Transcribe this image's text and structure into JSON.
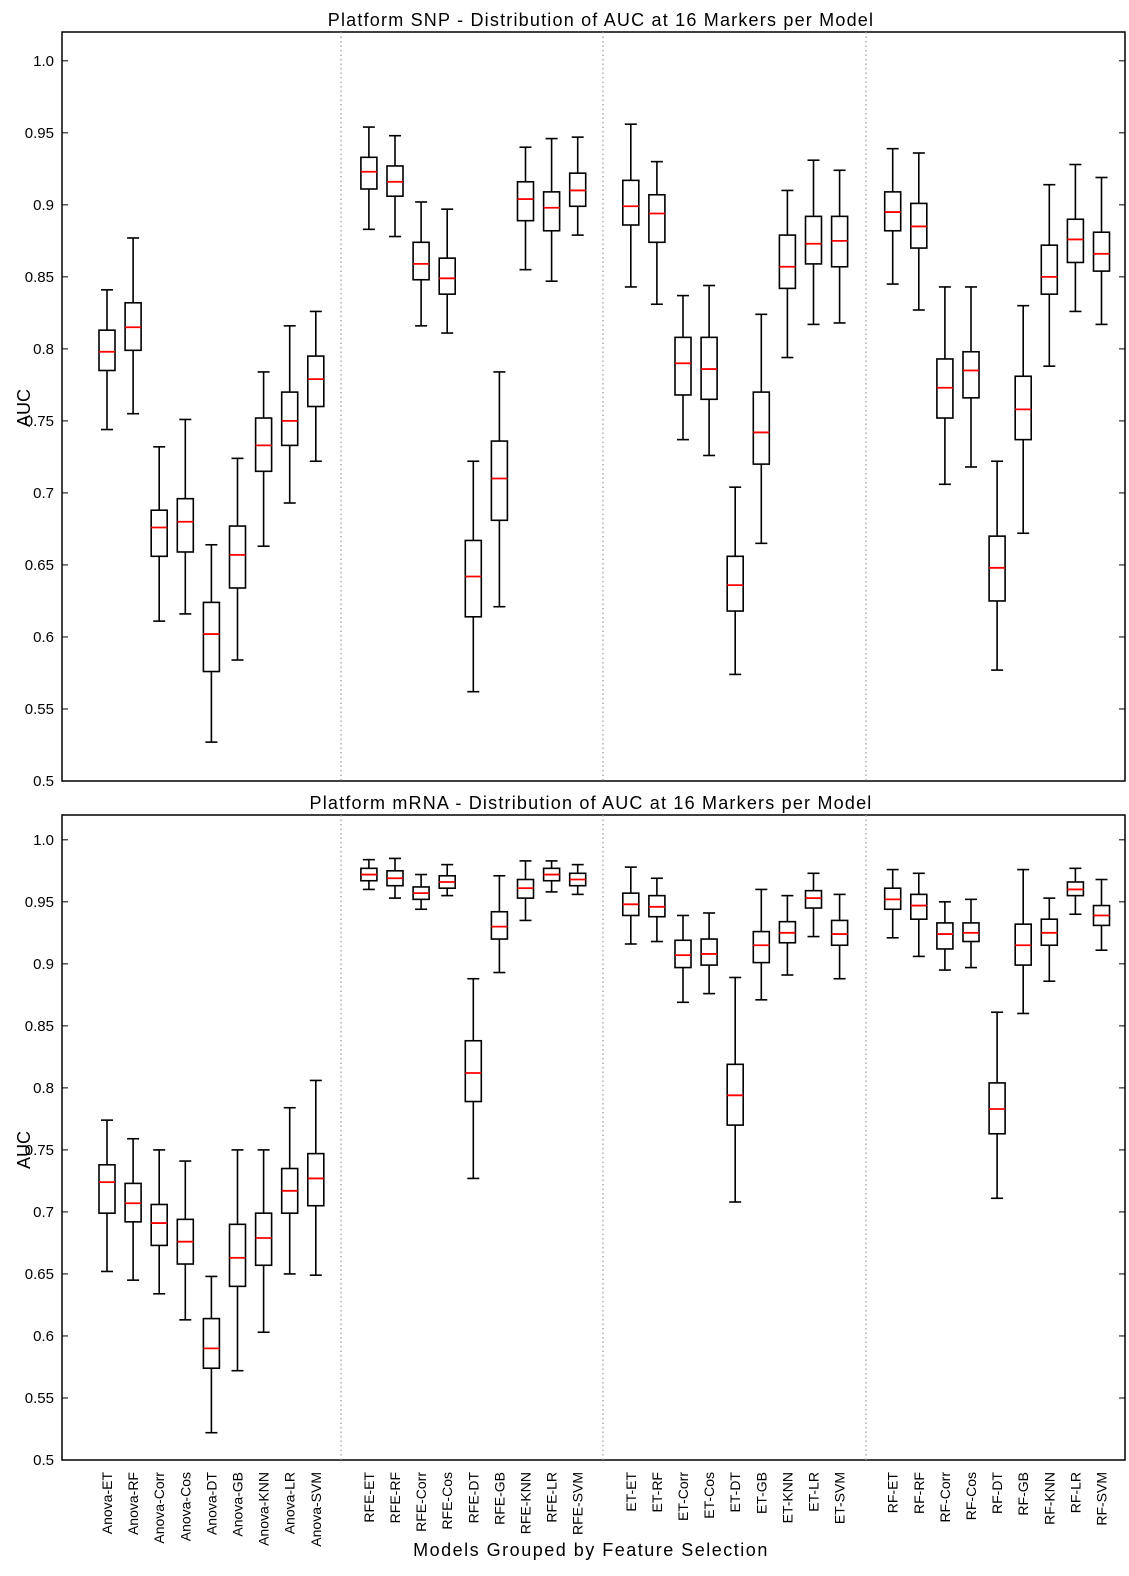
{
  "chart_data": [
    {
      "type": "box",
      "title": "Platform SNP - Distribution of AUC at 16 Markers per Model",
      "ylabel": "AUC",
      "xlabel": "",
      "ylim": [
        0.5,
        1.02
      ],
      "yticks": [
        "0.5",
        "0.55",
        "0.6",
        "0.65",
        "0.7",
        "0.75",
        "0.8",
        "0.85",
        "0.9",
        "0.95",
        "1.0"
      ],
      "grid": false,
      "group_separators": "dotted vertical lines between feature-selection groups",
      "categories": [
        "Anova-ET",
        "Anova-RF",
        "Anova-Corr",
        "Anova-Cos",
        "Anova-DT",
        "Anova-GB",
        "Anova-KNN",
        "Anova-LR",
        "Anova-SVM",
        "RFE-ET",
        "RFE-RF",
        "RFE-Corr",
        "RFE-Cos",
        "RFE-DT",
        "RFE-GB",
        "RFE-KNN",
        "RFE-LR",
        "RFE-SVM",
        "ET-ET",
        "ET-RF",
        "ET-Corr",
        "ET-Cos",
        "ET-DT",
        "ET-GB",
        "ET-KNN",
        "ET-LR",
        "ET-SVM",
        "RF-ET",
        "RF-RF",
        "RF-Corr",
        "RF-Cos",
        "RF-DT",
        "RF-GB",
        "RF-KNN",
        "RF-LR",
        "RF-SVM"
      ],
      "boxes": [
        {
          "whisker_low": 0.744,
          "q1": 0.785,
          "median": 0.798,
          "q3": 0.813,
          "whisker_high": 0.841
        },
        {
          "whisker_low": 0.755,
          "q1": 0.799,
          "median": 0.815,
          "q3": 0.832,
          "whisker_high": 0.877
        },
        {
          "whisker_low": 0.611,
          "q1": 0.656,
          "median": 0.676,
          "q3": 0.688,
          "whisker_high": 0.732
        },
        {
          "whisker_low": 0.616,
          "q1": 0.659,
          "median": 0.68,
          "q3": 0.696,
          "whisker_high": 0.751
        },
        {
          "whisker_low": 0.527,
          "q1": 0.576,
          "median": 0.602,
          "q3": 0.624,
          "whisker_high": 0.664
        },
        {
          "whisker_low": 0.584,
          "q1": 0.634,
          "median": 0.657,
          "q3": 0.677,
          "whisker_high": 0.724
        },
        {
          "whisker_low": 0.663,
          "q1": 0.715,
          "median": 0.733,
          "q3": 0.752,
          "whisker_high": 0.784
        },
        {
          "whisker_low": 0.693,
          "q1": 0.733,
          "median": 0.75,
          "q3": 0.77,
          "whisker_high": 0.816
        },
        {
          "whisker_low": 0.722,
          "q1": 0.76,
          "median": 0.779,
          "q3": 0.795,
          "whisker_high": 0.826
        },
        {
          "whisker_low": 0.883,
          "q1": 0.911,
          "median": 0.923,
          "q3": 0.933,
          "whisker_high": 0.954
        },
        {
          "whisker_low": 0.878,
          "q1": 0.906,
          "median": 0.916,
          "q3": 0.927,
          "whisker_high": 0.948
        },
        {
          "whisker_low": 0.816,
          "q1": 0.848,
          "median": 0.859,
          "q3": 0.874,
          "whisker_high": 0.902
        },
        {
          "whisker_low": 0.811,
          "q1": 0.838,
          "median": 0.849,
          "q3": 0.863,
          "whisker_high": 0.897
        },
        {
          "whisker_low": 0.562,
          "q1": 0.614,
          "median": 0.642,
          "q3": 0.667,
          "whisker_high": 0.722
        },
        {
          "whisker_low": 0.621,
          "q1": 0.681,
          "median": 0.71,
          "q3": 0.736,
          "whisker_high": 0.784
        },
        {
          "whisker_low": 0.855,
          "q1": 0.889,
          "median": 0.904,
          "q3": 0.916,
          "whisker_high": 0.94
        },
        {
          "whisker_low": 0.847,
          "q1": 0.882,
          "median": 0.898,
          "q3": 0.909,
          "whisker_high": 0.946
        },
        {
          "whisker_low": 0.879,
          "q1": 0.899,
          "median": 0.91,
          "q3": 0.922,
          "whisker_high": 0.947
        },
        {
          "whisker_low": 0.843,
          "q1": 0.886,
          "median": 0.899,
          "q3": 0.917,
          "whisker_high": 0.956
        },
        {
          "whisker_low": 0.831,
          "q1": 0.874,
          "median": 0.894,
          "q3": 0.907,
          "whisker_high": 0.93
        },
        {
          "whisker_low": 0.737,
          "q1": 0.768,
          "median": 0.79,
          "q3": 0.808,
          "whisker_high": 0.837
        },
        {
          "whisker_low": 0.726,
          "q1": 0.765,
          "median": 0.786,
          "q3": 0.808,
          "whisker_high": 0.844
        },
        {
          "whisker_low": 0.574,
          "q1": 0.618,
          "median": 0.636,
          "q3": 0.656,
          "whisker_high": 0.704
        },
        {
          "whisker_low": 0.665,
          "q1": 0.72,
          "median": 0.742,
          "q3": 0.77,
          "whisker_high": 0.824
        },
        {
          "whisker_low": 0.794,
          "q1": 0.842,
          "median": 0.857,
          "q3": 0.879,
          "whisker_high": 0.91
        },
        {
          "whisker_low": 0.817,
          "q1": 0.859,
          "median": 0.873,
          "q3": 0.892,
          "whisker_high": 0.931
        },
        {
          "whisker_low": 0.818,
          "q1": 0.857,
          "median": 0.875,
          "q3": 0.892,
          "whisker_high": 0.924
        },
        {
          "whisker_low": 0.845,
          "q1": 0.882,
          "median": 0.895,
          "q3": 0.909,
          "whisker_high": 0.939
        },
        {
          "whisker_low": 0.827,
          "q1": 0.87,
          "median": 0.885,
          "q3": 0.901,
          "whisker_high": 0.936
        },
        {
          "whisker_low": 0.706,
          "q1": 0.752,
          "median": 0.773,
          "q3": 0.793,
          "whisker_high": 0.843
        },
        {
          "whisker_low": 0.718,
          "q1": 0.766,
          "median": 0.785,
          "q3": 0.798,
          "whisker_high": 0.843
        },
        {
          "whisker_low": 0.577,
          "q1": 0.625,
          "median": 0.648,
          "q3": 0.67,
          "whisker_high": 0.722
        },
        {
          "whisker_low": 0.672,
          "q1": 0.737,
          "median": 0.758,
          "q3": 0.781,
          "whisker_high": 0.83
        },
        {
          "whisker_low": 0.788,
          "q1": 0.838,
          "median": 0.85,
          "q3": 0.872,
          "whisker_high": 0.914
        },
        {
          "whisker_low": 0.826,
          "q1": 0.86,
          "median": 0.876,
          "q3": 0.89,
          "whisker_high": 0.928
        },
        {
          "whisker_low": 0.817,
          "q1": 0.854,
          "median": 0.866,
          "q3": 0.881,
          "whisker_high": 0.919
        }
      ]
    },
    {
      "type": "box",
      "title": "Platform mRNA - Distribution of AUC at 16 Markers per Model",
      "ylabel": "AUC",
      "xlabel": "Models Grouped by Feature Selection",
      "ylim": [
        0.5,
        1.02
      ],
      "yticks": [
        "0.5",
        "0.55",
        "0.6",
        "0.65",
        "0.7",
        "0.75",
        "0.8",
        "0.85",
        "0.9",
        "0.95",
        "1.0"
      ],
      "grid": false,
      "group_separators": "dotted vertical lines between feature-selection groups",
      "categories": [
        "Anova-ET",
        "Anova-RF",
        "Anova-Corr",
        "Anova-Cos",
        "Anova-DT",
        "Anova-GB",
        "Anova-KNN",
        "Anova-LR",
        "Anova-SVM",
        "RFE-ET",
        "RFE-RF",
        "RFE-Corr",
        "RFE-Cos",
        "RFE-DT",
        "RFE-GB",
        "RFE-KNN",
        "RFE-LR",
        "RFE-SVM",
        "ET-ET",
        "ET-RF",
        "ET-Corr",
        "ET-Cos",
        "ET-DT",
        "ET-GB",
        "ET-KNN",
        "ET-LR",
        "ET-SVM",
        "RF-ET",
        "RF-RF",
        "RF-Corr",
        "RF-Cos",
        "RF-DT",
        "RF-GB",
        "RF-KNN",
        "RF-LR",
        "RF-SVM"
      ],
      "boxes": [
        {
          "whisker_low": 0.652,
          "q1": 0.699,
          "median": 0.724,
          "q3": 0.738,
          "whisker_high": 0.774
        },
        {
          "whisker_low": 0.645,
          "q1": 0.692,
          "median": 0.707,
          "q3": 0.723,
          "whisker_high": 0.759
        },
        {
          "whisker_low": 0.634,
          "q1": 0.673,
          "median": 0.691,
          "q3": 0.706,
          "whisker_high": 0.75
        },
        {
          "whisker_low": 0.613,
          "q1": 0.658,
          "median": 0.676,
          "q3": 0.694,
          "whisker_high": 0.741
        },
        {
          "whisker_low": 0.522,
          "q1": 0.574,
          "median": 0.59,
          "q3": 0.614,
          "whisker_high": 0.648
        },
        {
          "whisker_low": 0.572,
          "q1": 0.64,
          "median": 0.663,
          "q3": 0.69,
          "whisker_high": 0.75
        },
        {
          "whisker_low": 0.603,
          "q1": 0.657,
          "median": 0.679,
          "q3": 0.699,
          "whisker_high": 0.75
        },
        {
          "whisker_low": 0.65,
          "q1": 0.699,
          "median": 0.717,
          "q3": 0.735,
          "whisker_high": 0.784
        },
        {
          "whisker_low": 0.649,
          "q1": 0.705,
          "median": 0.727,
          "q3": 0.747,
          "whisker_high": 0.806
        },
        {
          "whisker_low": 0.96,
          "q1": 0.967,
          "median": 0.972,
          "q3": 0.977,
          "whisker_high": 0.984
        },
        {
          "whisker_low": 0.953,
          "q1": 0.963,
          "median": 0.969,
          "q3": 0.975,
          "whisker_high": 0.985
        },
        {
          "whisker_low": 0.944,
          "q1": 0.952,
          "median": 0.957,
          "q3": 0.962,
          "whisker_high": 0.972
        },
        {
          "whisker_low": 0.955,
          "q1": 0.961,
          "median": 0.966,
          "q3": 0.971,
          "whisker_high": 0.98
        },
        {
          "whisker_low": 0.727,
          "q1": 0.789,
          "median": 0.812,
          "q3": 0.838,
          "whisker_high": 0.888
        },
        {
          "whisker_low": 0.893,
          "q1": 0.92,
          "median": 0.93,
          "q3": 0.942,
          "whisker_high": 0.971
        },
        {
          "whisker_low": 0.935,
          "q1": 0.953,
          "median": 0.961,
          "q3": 0.968,
          "whisker_high": 0.983
        },
        {
          "whisker_low": 0.958,
          "q1": 0.967,
          "median": 0.972,
          "q3": 0.977,
          "whisker_high": 0.983
        },
        {
          "whisker_low": 0.956,
          "q1": 0.963,
          "median": 0.968,
          "q3": 0.973,
          "whisker_high": 0.98
        },
        {
          "whisker_low": 0.916,
          "q1": 0.939,
          "median": 0.948,
          "q3": 0.957,
          "whisker_high": 0.978
        },
        {
          "whisker_low": 0.918,
          "q1": 0.938,
          "median": 0.946,
          "q3": 0.955,
          "whisker_high": 0.969
        },
        {
          "whisker_low": 0.869,
          "q1": 0.897,
          "median": 0.907,
          "q3": 0.919,
          "whisker_high": 0.939
        },
        {
          "whisker_low": 0.876,
          "q1": 0.899,
          "median": 0.908,
          "q3": 0.92,
          "whisker_high": 0.941
        },
        {
          "whisker_low": 0.708,
          "q1": 0.77,
          "median": 0.794,
          "q3": 0.819,
          "whisker_high": 0.889
        },
        {
          "whisker_low": 0.871,
          "q1": 0.901,
          "median": 0.915,
          "q3": 0.926,
          "whisker_high": 0.96
        },
        {
          "whisker_low": 0.891,
          "q1": 0.917,
          "median": 0.925,
          "q3": 0.934,
          "whisker_high": 0.955
        },
        {
          "whisker_low": 0.922,
          "q1": 0.945,
          "median": 0.953,
          "q3": 0.959,
          "whisker_high": 0.973
        },
        {
          "whisker_low": 0.888,
          "q1": 0.915,
          "median": 0.924,
          "q3": 0.935,
          "whisker_high": 0.956
        },
        {
          "whisker_low": 0.921,
          "q1": 0.944,
          "median": 0.952,
          "q3": 0.961,
          "whisker_high": 0.976
        },
        {
          "whisker_low": 0.906,
          "q1": 0.936,
          "median": 0.947,
          "q3": 0.956,
          "whisker_high": 0.973
        },
        {
          "whisker_low": 0.895,
          "q1": 0.912,
          "median": 0.924,
          "q3": 0.933,
          "whisker_high": 0.95
        },
        {
          "whisker_low": 0.897,
          "q1": 0.918,
          "median": 0.925,
          "q3": 0.933,
          "whisker_high": 0.952
        },
        {
          "whisker_low": 0.711,
          "q1": 0.763,
          "median": 0.783,
          "q3": 0.804,
          "whisker_high": 0.861
        },
        {
          "whisker_low": 0.86,
          "q1": 0.899,
          "median": 0.915,
          "q3": 0.932,
          "whisker_high": 0.976
        },
        {
          "whisker_low": 0.886,
          "q1": 0.915,
          "median": 0.925,
          "q3": 0.936,
          "whisker_high": 0.953
        },
        {
          "whisker_low": 0.94,
          "q1": 0.955,
          "median": 0.96,
          "q3": 0.966,
          "whisker_high": 0.977
        },
        {
          "whisker_low": 0.911,
          "q1": 0.931,
          "median": 0.939,
          "q3": 0.947,
          "whisker_high": 0.968
        }
      ]
    }
  ],
  "colors": {
    "median": "#ff0000",
    "box": "#000000",
    "separator": "#9a9a9a"
  }
}
